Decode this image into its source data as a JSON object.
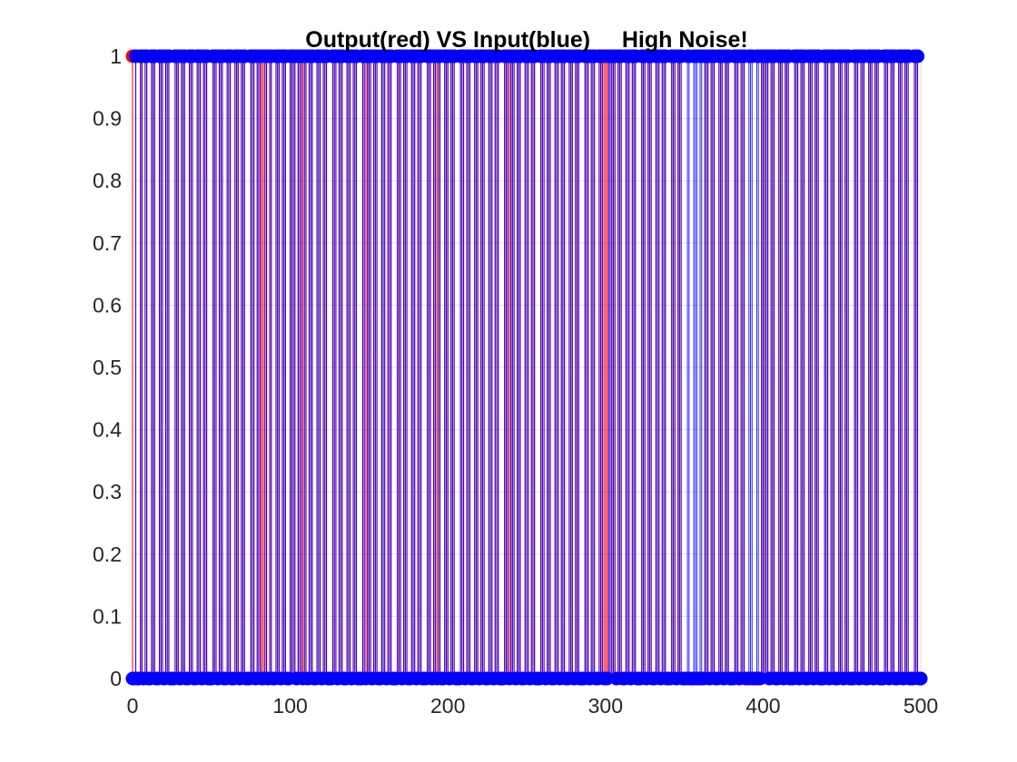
{
  "chart_data": {
    "type": "scatter",
    "subtype": "stem",
    "title": "Output(red) VS Input(blue)     High Noise!",
    "xlabel": "",
    "ylabel": "",
    "xlim": [
      0,
      500
    ],
    "ylim": [
      0,
      1
    ],
    "xticks": [
      "0",
      "100",
      "200",
      "300",
      "400",
      "500"
    ],
    "yticks": [
      "0",
      "0.1",
      "0.2",
      "0.3",
      "0.4",
      "0.5",
      "0.6",
      "0.7",
      "0.8",
      "0.9",
      "1"
    ],
    "grid": true,
    "legend": "none",
    "series": [
      {
        "color": "#ff0000",
        "zero_ranges": [
          [
            1,
            1
          ],
          [
            3,
            4
          ],
          [
            7,
            7
          ],
          [
            10,
            11
          ],
          [
            15,
            16
          ],
          [
            20,
            20
          ],
          [
            24,
            26
          ],
          [
            30,
            30
          ],
          [
            34,
            35
          ],
          [
            39,
            40
          ],
          [
            44,
            44
          ],
          [
            48,
            50
          ],
          [
            54,
            54
          ],
          [
            58,
            59
          ],
          [
            63,
            64
          ],
          [
            68,
            68
          ],
          [
            72,
            74
          ],
          [
            78,
            78
          ],
          [
            86,
            86
          ],
          [
            89,
            90
          ],
          [
            94,
            94
          ],
          [
            98,
            99
          ],
          [
            104,
            104
          ],
          [
            111,
            111
          ],
          [
            115,
            116
          ],
          [
            120,
            120
          ],
          [
            124,
            126
          ],
          [
            130,
            130
          ],
          [
            134,
            135
          ],
          [
            139,
            139
          ],
          [
            143,
            145
          ],
          [
            152,
            152
          ],
          [
            156,
            157
          ],
          [
            161,
            161
          ],
          [
            165,
            167
          ],
          [
            171,
            171
          ],
          [
            175,
            176
          ],
          [
            180,
            180
          ],
          [
            184,
            186
          ],
          [
            190,
            190
          ],
          [
            196,
            197
          ],
          [
            201,
            201
          ],
          [
            205,
            207
          ],
          [
            211,
            211
          ],
          [
            215,
            216
          ],
          [
            220,
            220
          ],
          [
            224,
            225
          ],
          [
            229,
            229
          ],
          [
            233,
            235
          ],
          [
            243,
            243
          ],
          [
            247,
            248
          ],
          [
            252,
            252
          ],
          [
            256,
            258
          ],
          [
            262,
            262
          ],
          [
            266,
            267
          ],
          [
            271,
            271
          ],
          [
            275,
            276
          ],
          [
            280,
            280
          ],
          [
            284,
            286
          ],
          [
            290,
            290
          ],
          [
            294,
            295
          ],
          [
            307,
            307
          ],
          [
            311,
            312
          ],
          [
            316,
            316
          ],
          [
            320,
            322
          ],
          [
            326,
            326
          ],
          [
            330,
            331
          ],
          [
            335,
            335
          ],
          [
            339,
            341
          ],
          [
            345,
            345
          ],
          [
            349,
            362
          ],
          [
            366,
            366
          ],
          [
            370,
            371
          ],
          [
            375,
            375
          ],
          [
            379,
            381
          ],
          [
            385,
            385
          ],
          [
            389,
            398
          ],
          [
            404,
            404
          ],
          [
            408,
            409
          ],
          [
            413,
            413
          ],
          [
            417,
            419
          ],
          [
            423,
            423
          ],
          [
            427,
            428
          ],
          [
            432,
            432
          ],
          [
            436,
            438
          ],
          [
            442,
            442
          ],
          [
            446,
            447
          ],
          [
            451,
            451
          ],
          [
            455,
            457
          ],
          [
            461,
            461
          ],
          [
            465,
            466
          ],
          [
            470,
            470
          ],
          [
            474,
            476
          ],
          [
            480,
            480
          ],
          [
            484,
            485
          ],
          [
            489,
            489
          ],
          [
            493,
            495
          ],
          [
            499,
            500
          ]
        ]
      },
      {
        "color": "#0000ff",
        "zero_ranges": [
          [
            0,
            1
          ],
          [
            3,
            4
          ],
          [
            7,
            7
          ],
          [
            10,
            11
          ],
          [
            15,
            16
          ],
          [
            20,
            20
          ],
          [
            24,
            26
          ],
          [
            30,
            30
          ],
          [
            34,
            35
          ],
          [
            39,
            40
          ],
          [
            44,
            44
          ],
          [
            48,
            50
          ],
          [
            54,
            54
          ],
          [
            58,
            59
          ],
          [
            63,
            64
          ],
          [
            68,
            68
          ],
          [
            72,
            74
          ],
          [
            78,
            78
          ],
          [
            82,
            83
          ],
          [
            86,
            86
          ],
          [
            89,
            90
          ],
          [
            94,
            94
          ],
          [
            98,
            99
          ],
          [
            104,
            104
          ],
          [
            108,
            108
          ],
          [
            111,
            111
          ],
          [
            115,
            116
          ],
          [
            120,
            120
          ],
          [
            124,
            126
          ],
          [
            130,
            130
          ],
          [
            134,
            135
          ],
          [
            139,
            139
          ],
          [
            143,
            145
          ],
          [
            148,
            148
          ],
          [
            152,
            152
          ],
          [
            156,
            157
          ],
          [
            161,
            161
          ],
          [
            165,
            167
          ],
          [
            171,
            171
          ],
          [
            175,
            176
          ],
          [
            180,
            180
          ],
          [
            184,
            186
          ],
          [
            190,
            190
          ],
          [
            193,
            193
          ],
          [
            196,
            197
          ],
          [
            201,
            201
          ],
          [
            205,
            207
          ],
          [
            211,
            211
          ],
          [
            215,
            216
          ],
          [
            220,
            220
          ],
          [
            224,
            225
          ],
          [
            229,
            229
          ],
          [
            233,
            235
          ],
          [
            239,
            239
          ],
          [
            243,
            243
          ],
          [
            247,
            248
          ],
          [
            252,
            252
          ],
          [
            256,
            258
          ],
          [
            262,
            262
          ],
          [
            266,
            267
          ],
          [
            271,
            271
          ],
          [
            275,
            276
          ],
          [
            280,
            280
          ],
          [
            284,
            286
          ],
          [
            290,
            290
          ],
          [
            294,
            295
          ],
          [
            299,
            301
          ],
          [
            307,
            307
          ],
          [
            311,
            312
          ],
          [
            316,
            316
          ],
          [
            320,
            322
          ],
          [
            326,
            326
          ],
          [
            330,
            331
          ],
          [
            335,
            335
          ],
          [
            339,
            341
          ],
          [
            345,
            345
          ],
          [
            349,
            351
          ],
          [
            354,
            355
          ],
          [
            359,
            359
          ],
          [
            362,
            362
          ],
          [
            366,
            366
          ],
          [
            370,
            371
          ],
          [
            375,
            375
          ],
          [
            379,
            381
          ],
          [
            385,
            385
          ],
          [
            389,
            390
          ],
          [
            394,
            395
          ],
          [
            398,
            398
          ],
          [
            404,
            404
          ],
          [
            408,
            409
          ],
          [
            413,
            413
          ],
          [
            417,
            419
          ],
          [
            423,
            423
          ],
          [
            427,
            428
          ],
          [
            432,
            432
          ],
          [
            436,
            438
          ],
          [
            442,
            442
          ],
          [
            446,
            447
          ],
          [
            451,
            451
          ],
          [
            455,
            457
          ],
          [
            461,
            461
          ],
          [
            465,
            466
          ],
          [
            470,
            470
          ],
          [
            474,
            476
          ],
          [
            480,
            480
          ],
          [
            484,
            485
          ],
          [
            489,
            489
          ],
          [
            493,
            495
          ],
          [
            499,
            500
          ]
        ]
      }
    ]
  }
}
